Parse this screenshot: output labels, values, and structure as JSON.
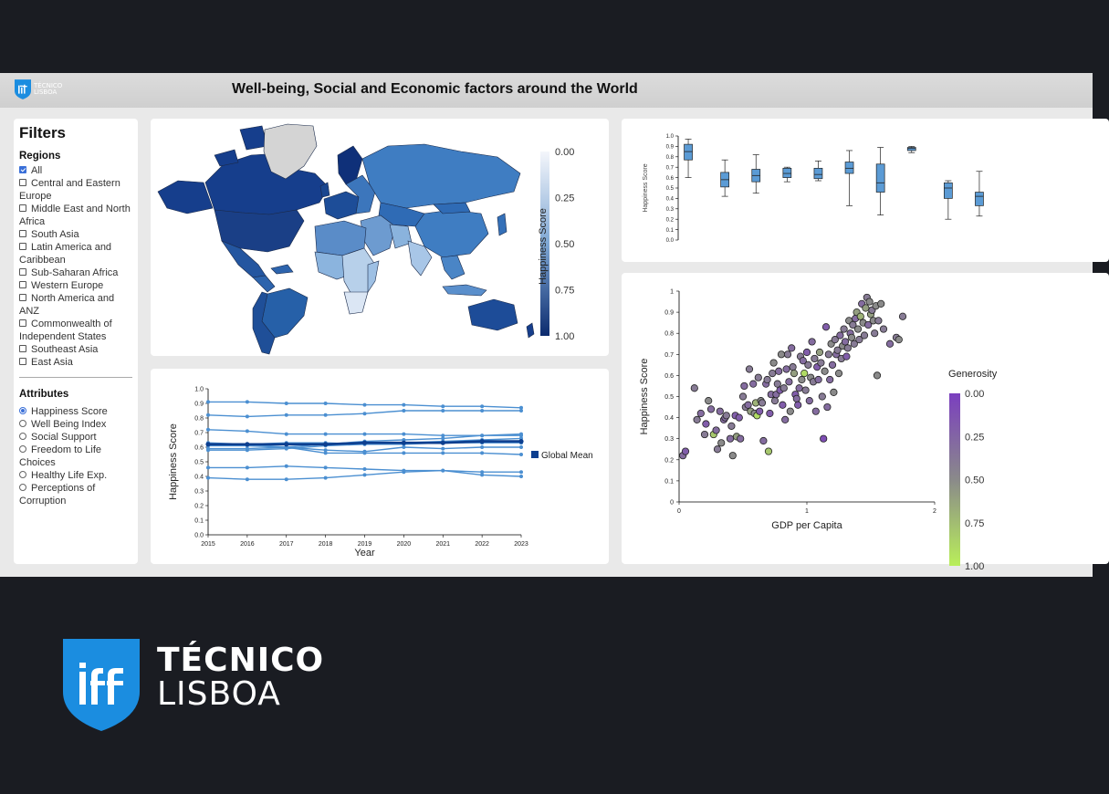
{
  "header": {
    "title": "Well-being, Social and Economic factors around the World",
    "logo_line1": "TÉCNICO",
    "logo_line2": "LISBOA"
  },
  "filters": {
    "heading": "Filters",
    "regions_heading": "Regions",
    "regions": [
      {
        "label": "All",
        "checked": true
      },
      {
        "label": "Central and Eastern Europe",
        "checked": false
      },
      {
        "label": "Middle East and North Africa",
        "checked": false
      },
      {
        "label": "South Asia",
        "checked": false
      },
      {
        "label": "Latin America and Caribbean",
        "checked": false
      },
      {
        "label": "Sub-Saharan Africa",
        "checked": false
      },
      {
        "label": "Western Europe",
        "checked": false
      },
      {
        "label": "North America and ANZ",
        "checked": false
      },
      {
        "label": "Commonwealth of Independent States",
        "checked": false
      },
      {
        "label": "Southeast Asia",
        "checked": false
      },
      {
        "label": "East Asia",
        "checked": false
      }
    ],
    "attributes_heading": "Attributes",
    "attributes": [
      {
        "label": "Happiness Score",
        "selected": true
      },
      {
        "label": "Well Being Index",
        "selected": false
      },
      {
        "label": "Social Support",
        "selected": false
      },
      {
        "label": "Freedom to Life Choices",
        "selected": false
      },
      {
        "label": "Healthy Life Exp.",
        "selected": false
      },
      {
        "label": "Perceptions of Corruption",
        "selected": false
      }
    ]
  },
  "map": {
    "legend_title": "Happiness Score",
    "legend_ticks": [
      "0.00",
      "0.25",
      "0.50",
      "0.75",
      "1.00"
    ],
    "colors": {
      "low": "#f4f6fb",
      "high": "#0c2b6e"
    }
  },
  "chart_data": [
    {
      "type": "line",
      "ylabel": "Happiness Score",
      "xlabel": "Year",
      "x": [
        2015,
        2016,
        2017,
        2018,
        2019,
        2020,
        2021,
        2022,
        2023
      ],
      "ylim": [
        0,
        1
      ],
      "yticks": [
        "0.0",
        "0.1",
        "0.2",
        "0.3",
        "0.4",
        "0.5",
        "0.6",
        "0.7",
        "0.8",
        "0.9",
        "1.0"
      ],
      "series": [
        {
          "name": "",
          "values": [
            0.91,
            0.91,
            0.9,
            0.9,
            0.89,
            0.89,
            0.88,
            0.88,
            0.87
          ]
        },
        {
          "name": "",
          "values": [
            0.82,
            0.81,
            0.82,
            0.82,
            0.83,
            0.85,
            0.85,
            0.85,
            0.85
          ]
        },
        {
          "name": "",
          "values": [
            0.72,
            0.71,
            0.69,
            0.69,
            0.69,
            0.69,
            0.68,
            0.68,
            0.69
          ]
        },
        {
          "name": "",
          "values": [
            0.63,
            0.62,
            0.6,
            0.62,
            0.64,
            0.65,
            0.66,
            0.68,
            0.68
          ]
        },
        {
          "name": "",
          "values": [
            0.62,
            0.62,
            0.63,
            0.63,
            0.62,
            0.62,
            0.63,
            0.63,
            0.63
          ]
        },
        {
          "name": "",
          "values": [
            0.61,
            0.61,
            0.6,
            0.58,
            0.57,
            0.6,
            0.59,
            0.6,
            0.6
          ]
        },
        {
          "name": "",
          "values": [
            0.59,
            0.59,
            0.6,
            0.56,
            0.56,
            0.56,
            0.56,
            0.56,
            0.55
          ]
        },
        {
          "name": "",
          "values": [
            0.58,
            0.58,
            0.59,
            0.61,
            0.62,
            0.63,
            0.64,
            0.65,
            0.66
          ]
        },
        {
          "name": "",
          "values": [
            0.46,
            0.46,
            0.47,
            0.46,
            0.45,
            0.44,
            0.44,
            0.43,
            0.43
          ]
        },
        {
          "name": "",
          "values": [
            0.39,
            0.38,
            0.38,
            0.39,
            0.41,
            0.43,
            0.44,
            0.41,
            0.4
          ]
        },
        {
          "name": "Global Mean",
          "values": [
            0.62,
            0.62,
            0.62,
            0.62,
            0.63,
            0.63,
            0.63,
            0.64,
            0.64
          ],
          "mean": true
        }
      ],
      "legend": "Global Mean"
    },
    {
      "type": "box",
      "ylabel": "Happiness Score",
      "ylim": [
        0,
        1
      ],
      "yticks": [
        "0.0",
        "0.1",
        "0.2",
        "0.3",
        "0.4",
        "0.5",
        "0.6",
        "0.7",
        "0.8",
        "0.9",
        "1.0"
      ],
      "boxes": [
        {
          "min": 0.6,
          "q1": 0.77,
          "median": 0.85,
          "q3": 0.92,
          "max": 0.97
        },
        {
          "min": 0.42,
          "q1": 0.51,
          "median": 0.58,
          "q3": 0.65,
          "max": 0.77
        },
        {
          "min": 0.45,
          "q1": 0.56,
          "median": 0.62,
          "q3": 0.68,
          "max": 0.82
        },
        {
          "min": 0.56,
          "q1": 0.6,
          "median": 0.64,
          "q3": 0.69,
          "max": 0.7
        },
        {
          "min": 0.57,
          "q1": 0.59,
          "median": 0.63,
          "q3": 0.69,
          "max": 0.76
        },
        {
          "min": 0.33,
          "q1": 0.64,
          "median": 0.69,
          "q3": 0.75,
          "max": 0.86
        },
        {
          "min": 0.24,
          "q1": 0.46,
          "median": 0.55,
          "q3": 0.73,
          "max": 0.89
        },
        {
          "min": 0.84,
          "q1": 0.86,
          "median": 0.88,
          "q3": 0.89,
          "max": 0.9
        },
        {
          "min": 0.2,
          "q1": 0.4,
          "median": 0.5,
          "q3": 0.55,
          "max": 0.57
        },
        {
          "min": 0.23,
          "q1": 0.33,
          "median": 0.42,
          "q3": 0.46,
          "max": 0.66
        }
      ]
    },
    {
      "type": "scatter",
      "xlabel": "GDP per Capita",
      "ylabel": "Happiness Score",
      "xlim": [
        0,
        2
      ],
      "ylim": [
        0,
        1
      ],
      "xticks": [
        "0",
        "1",
        "2"
      ],
      "yticks": [
        "0",
        "0.1",
        "0.2",
        "0.3",
        "0.4",
        "0.5",
        "0.6",
        "0.7",
        "0.8",
        "0.9",
        "1"
      ],
      "legend_title": "Generosity",
      "legend_ticks": [
        "0.00",
        "0.25",
        "0.50",
        "0.75",
        "1.00"
      ],
      "colors": {
        "low": "#7b3fbf",
        "mid": "#8a8a8a",
        "high": "#b9ef5a"
      },
      "points": [
        [
          0.03,
          0.22,
          0.3
        ],
        [
          0.05,
          0.24,
          0.2
        ],
        [
          0.12,
          0.54,
          0.4
        ],
        [
          0.14,
          0.39,
          0.4
        ],
        [
          0.17,
          0.42,
          0.3
        ],
        [
          0.2,
          0.32,
          0.4
        ],
        [
          0.21,
          0.37,
          0.2
        ],
        [
          0.23,
          0.48,
          0.5
        ],
        [
          0.25,
          0.44,
          0.3
        ],
        [
          0.27,
          0.32,
          0.8
        ],
        [
          0.29,
          0.34,
          0.3
        ],
        [
          0.3,
          0.25,
          0.4
        ],
        [
          0.32,
          0.43,
          0.3
        ],
        [
          0.33,
          0.28,
          0.5
        ],
        [
          0.35,
          0.39,
          0.3
        ],
        [
          0.36,
          0.4,
          0.3
        ],
        [
          0.37,
          0.41,
          0.4
        ],
        [
          0.4,
          0.3,
          0.3
        ],
        [
          0.41,
          0.36,
          0.4
        ],
        [
          0.42,
          0.22,
          0.5
        ],
        [
          0.44,
          0.41,
          0.2
        ],
        [
          0.45,
          0.31,
          0.6
        ],
        [
          0.47,
          0.4,
          0.2
        ],
        [
          0.48,
          0.3,
          0.3
        ],
        [
          0.5,
          0.5,
          0.4
        ],
        [
          0.51,
          0.55,
          0.3
        ],
        [
          0.52,
          0.45,
          0.4
        ],
        [
          0.54,
          0.46,
          0.3
        ],
        [
          0.55,
          0.63,
          0.4
        ],
        [
          0.56,
          0.43,
          0.6
        ],
        [
          0.58,
          0.56,
          0.3
        ],
        [
          0.59,
          0.42,
          0.5
        ],
        [
          0.6,
          0.47,
          0.7
        ],
        [
          0.61,
          0.41,
          0.9
        ],
        [
          0.62,
          0.59,
          0.4
        ],
        [
          0.63,
          0.43,
          0.2
        ],
        [
          0.64,
          0.48,
          0.5
        ],
        [
          0.65,
          0.47,
          0.4
        ],
        [
          0.66,
          0.29,
          0.3
        ],
        [
          0.68,
          0.56,
          0.3
        ],
        [
          0.69,
          0.58,
          0.4
        ],
        [
          0.7,
          0.24,
          0.8
        ],
        [
          0.71,
          0.42,
          0.2
        ],
        [
          0.72,
          0.51,
          0.3
        ],
        [
          0.73,
          0.61,
          0.4
        ],
        [
          0.74,
          0.66,
          0.5
        ],
        [
          0.75,
          0.48,
          0.4
        ],
        [
          0.76,
          0.51,
          0.3
        ],
        [
          0.77,
          0.56,
          0.4
        ],
        [
          0.78,
          0.62,
          0.3
        ],
        [
          0.79,
          0.53,
          0.2
        ],
        [
          0.8,
          0.7,
          0.5
        ],
        [
          0.81,
          0.46,
          0.2
        ],
        [
          0.82,
          0.54,
          0.4
        ],
        [
          0.83,
          0.39,
          0.3
        ],
        [
          0.84,
          0.63,
          0.3
        ],
        [
          0.85,
          0.7,
          0.4
        ],
        [
          0.86,
          0.57,
          0.3
        ],
        [
          0.87,
          0.43,
          0.5
        ],
        [
          0.88,
          0.73,
          0.3
        ],
        [
          0.89,
          0.64,
          0.4
        ],
        [
          0.9,
          0.61,
          0.6
        ],
        [
          0.91,
          0.51,
          0.2
        ],
        [
          0.92,
          0.49,
          0.3
        ],
        [
          0.93,
          0.46,
          0.2
        ],
        [
          0.94,
          0.54,
          0.3
        ],
        [
          0.95,
          0.69,
          0.4
        ],
        [
          0.96,
          0.58,
          0.5
        ],
        [
          0.97,
          0.67,
          0.3
        ],
        [
          0.98,
          0.61,
          0.9
        ],
        [
          0.99,
          0.53,
          0.4
        ],
        [
          1.0,
          0.71,
          0.2
        ],
        [
          1.01,
          0.65,
          0.4
        ],
        [
          1.02,
          0.48,
          0.3
        ],
        [
          1.03,
          0.59,
          0.5
        ],
        [
          1.04,
          0.76,
          0.3
        ],
        [
          1.05,
          0.57,
          0.4
        ],
        [
          1.06,
          0.68,
          0.4
        ],
        [
          1.07,
          0.43,
          0.3
        ],
        [
          1.08,
          0.64,
          0.2
        ],
        [
          1.09,
          0.58,
          0.3
        ],
        [
          1.1,
          0.71,
          0.6
        ],
        [
          1.11,
          0.66,
          0.4
        ],
        [
          1.12,
          0.5,
          0.4
        ],
        [
          1.13,
          0.3,
          0.1
        ],
        [
          1.14,
          0.62,
          0.5
        ],
        [
          1.15,
          0.83,
          0.2
        ],
        [
          1.16,
          0.45,
          0.3
        ],
        [
          1.17,
          0.7,
          0.4
        ],
        [
          1.18,
          0.58,
          0.3
        ],
        [
          1.19,
          0.75,
          0.5
        ],
        [
          1.2,
          0.65,
          0.3
        ],
        [
          1.21,
          0.52,
          0.5
        ],
        [
          1.22,
          0.77,
          0.4
        ],
        [
          1.23,
          0.7,
          0.3
        ],
        [
          1.24,
          0.72,
          0.4
        ],
        [
          1.25,
          0.61,
          0.5
        ],
        [
          1.26,
          0.79,
          0.3
        ],
        [
          1.27,
          0.68,
          0.4
        ],
        [
          1.28,
          0.74,
          0.5
        ],
        [
          1.29,
          0.82,
          0.4
        ],
        [
          1.3,
          0.76,
          0.3
        ],
        [
          1.31,
          0.69,
          0.2
        ],
        [
          1.32,
          0.73,
          0.4
        ],
        [
          1.33,
          0.86,
          0.5
        ],
        [
          1.34,
          0.8,
          0.3
        ],
        [
          1.35,
          0.78,
          0.5
        ],
        [
          1.36,
          0.84,
          0.4
        ],
        [
          1.37,
          0.75,
          0.4
        ],
        [
          1.38,
          0.87,
          0.3
        ],
        [
          1.39,
          0.9,
          0.6
        ],
        [
          1.4,
          0.82,
          0.5
        ],
        [
          1.41,
          0.77,
          0.4
        ],
        [
          1.42,
          0.88,
          0.7
        ],
        [
          1.43,
          0.94,
          0.3
        ],
        [
          1.44,
          0.85,
          0.5
        ],
        [
          1.45,
          0.79,
          0.4
        ],
        [
          1.46,
          0.92,
          0.6
        ],
        [
          1.47,
          0.97,
          0.4
        ],
        [
          1.48,
          0.84,
          0.3
        ],
        [
          1.49,
          0.95,
          0.5
        ],
        [
          1.5,
          0.89,
          0.6
        ],
        [
          1.51,
          0.91,
          0.4
        ],
        [
          1.52,
          0.86,
          0.5
        ],
        [
          1.53,
          0.8,
          0.4
        ],
        [
          1.54,
          0.93,
          0.5
        ],
        [
          1.55,
          0.6,
          0.5
        ],
        [
          1.56,
          0.86,
          0.4
        ],
        [
          1.58,
          0.94,
          0.5
        ],
        [
          1.6,
          0.82,
          0.4
        ],
        [
          1.65,
          0.75,
          0.3
        ],
        [
          1.7,
          0.78,
          0.4
        ],
        [
          1.72,
          0.77,
          0.5
        ],
        [
          1.75,
          0.88,
          0.4
        ]
      ]
    }
  ],
  "footer_logo": {
    "line1": "TÉCNICO",
    "line2": "LISBOA",
    "color": "#1b8de0"
  }
}
